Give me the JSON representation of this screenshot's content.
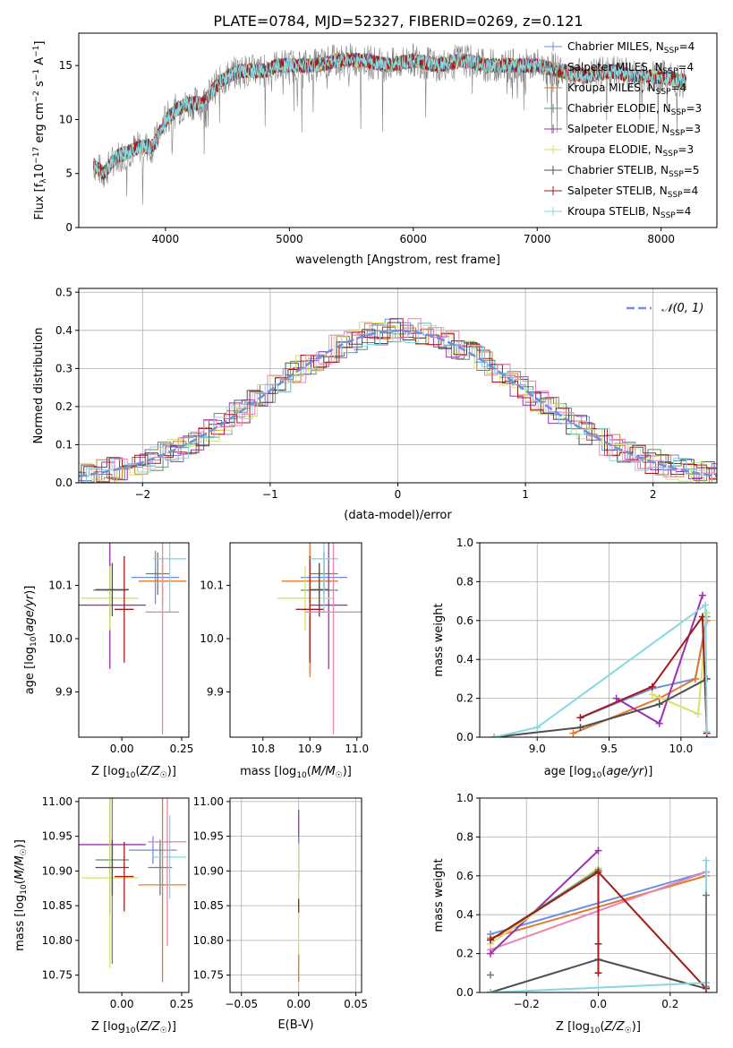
{
  "figure": {
    "title": "PLATE=0784, MJD=52327, FIBERID=0269, z=0.121"
  },
  "colors": {
    "chabrier_miles": "#6f8fdf",
    "salpeter_miles": "#777777",
    "kroupa_miles": "#e07a30",
    "chabrier_elodie": "#5e8f6e",
    "salpeter_elodie": "#9b30b0",
    "kroupa_elodie": "#d5e36a",
    "chabrier_stelib": "#4f4f4f",
    "salpeter_stelib": "#a31a1a",
    "kroupa_stelib": "#86d8e0",
    "extra_pink": "#e884b6",
    "gaussian": "#6f8fdf",
    "grid": "#b0b0b0",
    "data_spectrum": "#808080"
  },
  "chart_data": [
    {
      "id": "spectrum",
      "type": "line",
      "title": "PLATE=0784, MJD=52327, FIBERID=0269, z=0.121",
      "xlabel": "wavelength [Angstrom, rest frame]",
      "ylabel": "Flux [f_λ 10^-17 erg cm^-2 s^-1 A^-1]",
      "xlim": [
        3300,
        8450
      ],
      "ylim": [
        0,
        18
      ],
      "xticks": [
        4000,
        5000,
        6000,
        7000,
        8000
      ],
      "yticks": [
        0,
        5,
        10,
        15
      ],
      "grid": false,
      "legend_position": "top-right",
      "data_series": {
        "name": "data",
        "x": [
          3400,
          3500,
          3600,
          3700,
          3800,
          3900,
          4000,
          4100,
          4200,
          4300,
          4400,
          4500,
          4600,
          4700,
          4800,
          4900,
          5000,
          5200,
          5400,
          5600,
          5800,
          6000,
          6200,
          6400,
          6600,
          6800,
          7000,
          7200,
          7400,
          7600,
          7800,
          8000,
          8200
        ],
        "y": [
          6.0,
          5.0,
          6.5,
          7.0,
          7.5,
          7.5,
          10.0,
          11.0,
          11.5,
          11.5,
          13.0,
          14.0,
          14.5,
          14.5,
          14.5,
          15.0,
          15.0,
          15.0,
          15.5,
          15.5,
          15.0,
          15.5,
          15.0,
          15.5,
          15.0,
          15.0,
          15.0,
          14.5,
          14.0,
          14.5,
          14.0,
          14.0,
          13.5
        ]
      },
      "series": [
        {
          "name": "Chabrier MILES, N_SSP=4",
          "label_main": "Chabrier MILES, N",
          "label_sub": "SSP",
          "label_tail": "=4",
          "color_key": "chabrier_miles",
          "marker": "plus"
        },
        {
          "name": "Salpeter MILES, N_SSP=4",
          "label_main": "Salpeter MILES, N",
          "label_sub": "SSP",
          "label_tail": "=4",
          "color_key": "salpeter_miles",
          "marker": "plus"
        },
        {
          "name": "Kroupa MILES, N_SSP=4",
          "label_main": "Kroupa MILES, N",
          "label_sub": "SSP",
          "label_tail": "=4",
          "color_key": "kroupa_miles",
          "marker": "plus"
        },
        {
          "name": "Chabrier ELODIE, N_SSP=3",
          "label_main": "Chabrier ELODIE, N",
          "label_sub": "SSP",
          "label_tail": "=3",
          "color_key": "chabrier_elodie",
          "marker": "plus"
        },
        {
          "name": "Salpeter ELODIE, N_SSP=3",
          "label_main": "Salpeter ELODIE, N",
          "label_sub": "SSP",
          "label_tail": "=3",
          "color_key": "salpeter_elodie",
          "marker": "plus"
        },
        {
          "name": "Kroupa ELODIE, N_SSP=3",
          "label_main": "Kroupa ELODIE, N",
          "label_sub": "SSP",
          "label_tail": "=3",
          "color_key": "kroupa_elodie",
          "marker": "plus"
        },
        {
          "name": "Chabrier STELIB, N_SSP=5",
          "label_main": "Chabrier STELIB, N",
          "label_sub": "SSP",
          "label_tail": "=5",
          "color_key": "chabrier_stelib",
          "marker": "plus"
        },
        {
          "name": "Salpeter STELIB, N_SSP=4",
          "label_main": "Salpeter STELIB, N",
          "label_sub": "SSP",
          "label_tail": "=4",
          "color_key": "salpeter_stelib",
          "marker": "plus"
        },
        {
          "name": "Kroupa STELIB, N_SSP=4",
          "label_main": "Kroupa STELIB, N",
          "label_sub": "SSP",
          "label_tail": "=4",
          "color_key": "kroupa_stelib",
          "marker": "plus"
        }
      ]
    },
    {
      "id": "residuals",
      "type": "line",
      "xlabel": "(data-model)/error",
      "ylabel": "Normed distribution",
      "xlim": [
        -2.5,
        2.5
      ],
      "ylim": [
        0,
        0.51
      ],
      "xticks": [
        -2,
        -1,
        0,
        1,
        2
      ],
      "yticks": [
        0.0,
        0.1,
        0.2,
        0.3,
        0.4,
        0.5
      ],
      "grid": true,
      "legend_position": "top-right",
      "legend_label": "𝒩(0, 1)",
      "gaussian": {
        "mean": 0,
        "sigma": 1
      },
      "hist_bin_width": 0.1,
      "hist_series_colors": [
        "chabrier_miles",
        "salpeter_miles",
        "kroupa_miles",
        "chabrier_elodie",
        "salpeter_elodie",
        "kroupa_elodie",
        "chabrier_stelib",
        "salpeter_stelib",
        "kroupa_stelib",
        "extra_pink"
      ]
    },
    {
      "id": "age_vs_Z",
      "type": "scatter",
      "xlabel": "Z [log10(Z/Z☉)]",
      "ylabel": "age  [log10(age/yr)]",
      "xlim": [
        -0.18,
        0.28
      ],
      "ylim": [
        9.815,
        10.18
      ],
      "xticks": [
        -0.25,
        0.0,
        0.25
      ],
      "xticklabels": [
        "−0.25",
        "0.00",
        "0.25"
      ],
      "yticks": [
        9.9,
        10.0,
        10.1
      ],
      "grid": false,
      "points": [
        {
          "color_key": "chabrier_miles",
          "x": 0.14,
          "xerr": 0.1,
          "y": 10.115,
          "yerr": 0.05
        },
        {
          "color_key": "salpeter_miles",
          "x": 0.15,
          "xerr": 0.05,
          "y": 10.122,
          "yerr": 0.04
        },
        {
          "color_key": "kroupa_miles",
          "x": 0.17,
          "xerr": 0.1,
          "y": 10.108,
          "yerr": 0.045
        },
        {
          "color_key": "chabrier_elodie",
          "x": -0.05,
          "xerr": 0.07,
          "y": 10.091,
          "yerr": 0.05
        },
        {
          "color_key": "salpeter_elodie",
          "x": -0.05,
          "xerr": 0.15,
          "y": 10.063,
          "yerr": 0.12
        },
        {
          "color_key": "kroupa_elodie",
          "x": -0.05,
          "xerr": 0.12,
          "y": 10.076,
          "yerr": 0.06
        },
        {
          "color_key": "chabrier_stelib",
          "x": -0.04,
          "xerr": 0.07,
          "y": 10.092,
          "yerr": 0.05
        },
        {
          "color_key": "salpeter_stelib",
          "x": 0.01,
          "xerr": 0.04,
          "y": 10.055,
          "yerr": 0.1
        },
        {
          "color_key": "kroupa_stelib",
          "x": 0.2,
          "xerr": 0.07,
          "y": 10.15,
          "yerr": 0.1
        },
        {
          "color_key": "extra_pink",
          "x": 0.17,
          "xerr": 0.07,
          "y": 10.05,
          "yerr": 0.23
        }
      ]
    },
    {
      "id": "age_vs_mass",
      "type": "scatter",
      "xlabel": "mass [log10(M/M☉)]",
      "xlim": [
        10.73,
        11.01
      ],
      "ylim": [
        9.815,
        10.18
      ],
      "xticks": [
        10.8,
        10.9,
        11.0
      ],
      "yticks": [
        9.9,
        10.0,
        10.1
      ],
      "grid": false,
      "points": [
        {
          "color_key": "chabrier_miles",
          "x": 10.93,
          "xerr": 0.05,
          "y": 10.115,
          "yerr": 0.05
        },
        {
          "color_key": "salpeter_miles",
          "x": 10.93,
          "xerr": 0.03,
          "y": 10.122,
          "yerr": 0.04
        },
        {
          "color_key": "kroupa_miles",
          "x": 10.9,
          "xerr": 0.06,
          "y": 10.108,
          "yerr": 0.18
        },
        {
          "color_key": "chabrier_elodie",
          "x": 10.92,
          "xerr": 0.04,
          "y": 10.091,
          "yerr": 0.05
        },
        {
          "color_key": "salpeter_elodie",
          "x": 10.94,
          "xerr": 0.04,
          "y": 10.063,
          "yerr": 0.12
        },
        {
          "color_key": "kroupa_elodie",
          "x": 10.89,
          "xerr": 0.06,
          "y": 10.076,
          "yerr": 0.06
        },
        {
          "color_key": "chabrier_stelib",
          "x": 10.92,
          "xerr": 0.02,
          "y": 10.092,
          "yerr": 0.05
        },
        {
          "color_key": "salpeter_stelib",
          "x": 10.9,
          "xerr": 0.03,
          "y": 10.055,
          "yerr": 0.1
        },
        {
          "color_key": "kroupa_stelib",
          "x": 10.93,
          "xerr": 0.03,
          "y": 10.15,
          "yerr": 0.1
        },
        {
          "color_key": "extra_pink",
          "x": 10.95,
          "xerr": 0.06,
          "y": 10.05,
          "yerr": 0.23
        }
      ]
    },
    {
      "id": "mass_weight_vs_age",
      "type": "line",
      "xlabel": "age  [log10(age/yr)]",
      "ylabel": "mass weight",
      "xlim": [
        8.6,
        10.25
      ],
      "ylim": [
        0,
        1
      ],
      "xticks": [
        9.0,
        9.5,
        10.0
      ],
      "yticks": [
        0.0,
        0.2,
        0.4,
        0.6,
        0.8,
        1.0
      ],
      "grid": true,
      "series": [
        {
          "color_key": "chabrier_miles",
          "x": [
            9.3,
            9.8,
            10.1,
            10.18
          ],
          "y": [
            0.1,
            0.25,
            0.3,
            0.62
          ]
        },
        {
          "color_key": "kroupa_miles",
          "x": [
            9.25,
            9.85,
            10.1,
            10.18
          ],
          "y": [
            0.02,
            0.2,
            0.3,
            0.6
          ]
        },
        {
          "color_key": "salpeter_elodie",
          "x": [
            9.55,
            9.85,
            10.15
          ],
          "y": [
            0.2,
            0.07,
            0.73
          ]
        },
        {
          "color_key": "kroupa_elodie",
          "x": [
            9.8,
            10.12,
            10.18
          ],
          "y": [
            0.22,
            0.12,
            0.64
          ]
        },
        {
          "color_key": "chabrier_stelib",
          "x": [
            8.7,
            9.3,
            9.85,
            10.18
          ],
          "y": [
            0.0,
            0.05,
            0.17,
            0.3
          ]
        },
        {
          "color_key": "salpeter_stelib",
          "x": [
            9.3,
            9.8,
            10.15,
            10.18
          ],
          "y": [
            0.1,
            0.26,
            0.62,
            0.02
          ]
        },
        {
          "color_key": "kroupa_stelib",
          "x": [
            8.7,
            9.0,
            10.17,
            10.18
          ],
          "y": [
            0.0,
            0.05,
            0.68,
            0.03
          ]
        }
      ]
    },
    {
      "id": "mass_vs_Z",
      "type": "scatter",
      "xlabel": "Z [log10(Z/Z☉)]",
      "ylabel": "mass [log10(M/M☉)]",
      "xlim": [
        -0.18,
        0.28
      ],
      "ylim": [
        10.725,
        11.005
      ],
      "xticks": [
        -0.25,
        0.0,
        0.25
      ],
      "xticklabels": [
        "−0.25",
        "0.00",
        "0.25"
      ],
      "yticks": [
        10.75,
        10.8,
        10.85,
        10.9,
        10.95,
        11.0
      ],
      "grid": false,
      "points": [
        {
          "color_key": "chabrier_miles",
          "x": 0.13,
          "xerr": 0.1,
          "y": 10.93,
          "yerr": 0.02
        },
        {
          "color_key": "salpeter_miles",
          "x": 0.16,
          "xerr": 0.05,
          "y": 10.905,
          "yerr": 0.04
        },
        {
          "color_key": "kroupa_miles",
          "x": 0.17,
          "xerr": 0.1,
          "y": 10.88,
          "yerr": 0.14
        },
        {
          "color_key": "chabrier_elodie",
          "x": -0.04,
          "xerr": 0.07,
          "y": 10.916,
          "yerr": 0.15
        },
        {
          "color_key": "salpeter_elodie",
          "x": -0.05,
          "xerr": 0.15,
          "y": 10.938,
          "yerr": 0.1
        },
        {
          "color_key": "kroupa_elodie",
          "x": -0.05,
          "xerr": 0.12,
          "y": 10.89,
          "yerr": 0.13
        },
        {
          "color_key": "chabrier_stelib",
          "x": -0.04,
          "xerr": 0.07,
          "y": 10.905,
          "yerr": 0.04
        },
        {
          "color_key": "salpeter_stelib",
          "x": 0.01,
          "xerr": 0.04,
          "y": 10.892,
          "yerr": 0.05
        },
        {
          "color_key": "kroupa_stelib",
          "x": 0.2,
          "xerr": 0.07,
          "y": 10.92,
          "yerr": 0.06
        },
        {
          "color_key": "extra_pink",
          "x": 0.19,
          "xerr": 0.08,
          "y": 10.942,
          "yerr": 0.15
        }
      ]
    },
    {
      "id": "mass_vs_ebv",
      "type": "scatter",
      "xlabel": "E(B-V)",
      "xlim": [
        -0.06,
        0.055
      ],
      "ylim": [
        10.725,
        11.005
      ],
      "xticks": [
        -0.05,
        0.0,
        0.05
      ],
      "xticklabels": [
        "−0.05",
        "0.00",
        "0.05"
      ],
      "yticks": [
        10.75,
        10.8,
        10.85,
        10.9,
        10.95,
        11.0
      ],
      "grid": true,
      "points": [
        {
          "color_key": "salpeter_elodie",
          "x": 0.0,
          "y": 10.938,
          "yerr": 0.05
        },
        {
          "color_key": "chabrier_miles",
          "x": 0.0,
          "y": 10.93,
          "yerr": 0.02
        },
        {
          "color_key": "kroupa_elodie",
          "x": 0.0,
          "y": 10.85,
          "yerr": 0.09
        },
        {
          "color_key": "salpeter_stelib",
          "x": 0.0,
          "y": 10.85,
          "yerr": 0.01
        },
        {
          "color_key": "kroupa_miles",
          "x": 0.0,
          "y": 10.76,
          "yerr": 0.02
        }
      ]
    },
    {
      "id": "mass_weight_vs_Z",
      "type": "line",
      "xlabel": "Z [log10(Z/Z☉)]",
      "ylabel": "mass weight",
      "xlim": [
        -0.33,
        0.33
      ],
      "ylim": [
        0,
        1
      ],
      "xticks": [
        -0.2,
        0.0,
        0.2
      ],
      "xticklabels": [
        "−0.2",
        "0.0",
        "0.2"
      ],
      "yticks": [
        0.0,
        0.2,
        0.4,
        0.6,
        0.8,
        1.0
      ],
      "grid": true,
      "series": [
        {
          "color_key": "chabrier_miles",
          "x": [
            -0.3,
            0.3
          ],
          "y": [
            0.3,
            0.62
          ]
        },
        {
          "color_key": "kroupa_miles",
          "x": [
            -0.3,
            0.3
          ],
          "y": [
            0.28,
            0.6
          ]
        },
        {
          "color_key": "extra_pink",
          "x": [
            -0.3,
            0.3
          ],
          "y": [
            0.22,
            0.62
          ]
        },
        {
          "color_key": "salpeter_elodie",
          "x": [
            -0.3,
            0.0
          ],
          "y": [
            0.2,
            0.73
          ]
        },
        {
          "color_key": "kroupa_elodie",
          "x": [
            -0.3,
            0.0
          ],
          "y": [
            0.25,
            0.64
          ]
        },
        {
          "color_key": "chabrier_elodie",
          "x": [
            -0.3,
            0.0
          ],
          "y": [
            0.27,
            0.63
          ]
        },
        {
          "color_key": "chabrier_stelib",
          "x": [
            -0.3,
            0.0,
            0.3
          ],
          "y": [
            0.0,
            0.17,
            0.02
          ]
        },
        {
          "color_key": "salpeter_stelib",
          "x": [
            -0.3,
            0.0,
            0.3
          ],
          "y": [
            0.27,
            0.62,
            0.02
          ]
        },
        {
          "color_key": "kroupa_stelib",
          "x": [
            -0.3,
            0.3
          ],
          "y": [
            0.0,
            0.05
          ]
        }
      ],
      "vertical_markers": [
        {
          "color_key": "salpeter_stelib",
          "x": 0.0,
          "y": [
            0.1,
            0.25,
            0.62
          ]
        },
        {
          "color_key": "kroupa_stelib",
          "x": 0.3,
          "y": [
            0.05,
            0.68
          ]
        },
        {
          "color_key": "salpeter_miles",
          "x": 0.3,
          "y": [
            0.5,
            0.03
          ]
        },
        {
          "color_key": "salpeter_miles",
          "x": -0.3,
          "y": [
            0.09
          ]
        }
      ]
    }
  ]
}
